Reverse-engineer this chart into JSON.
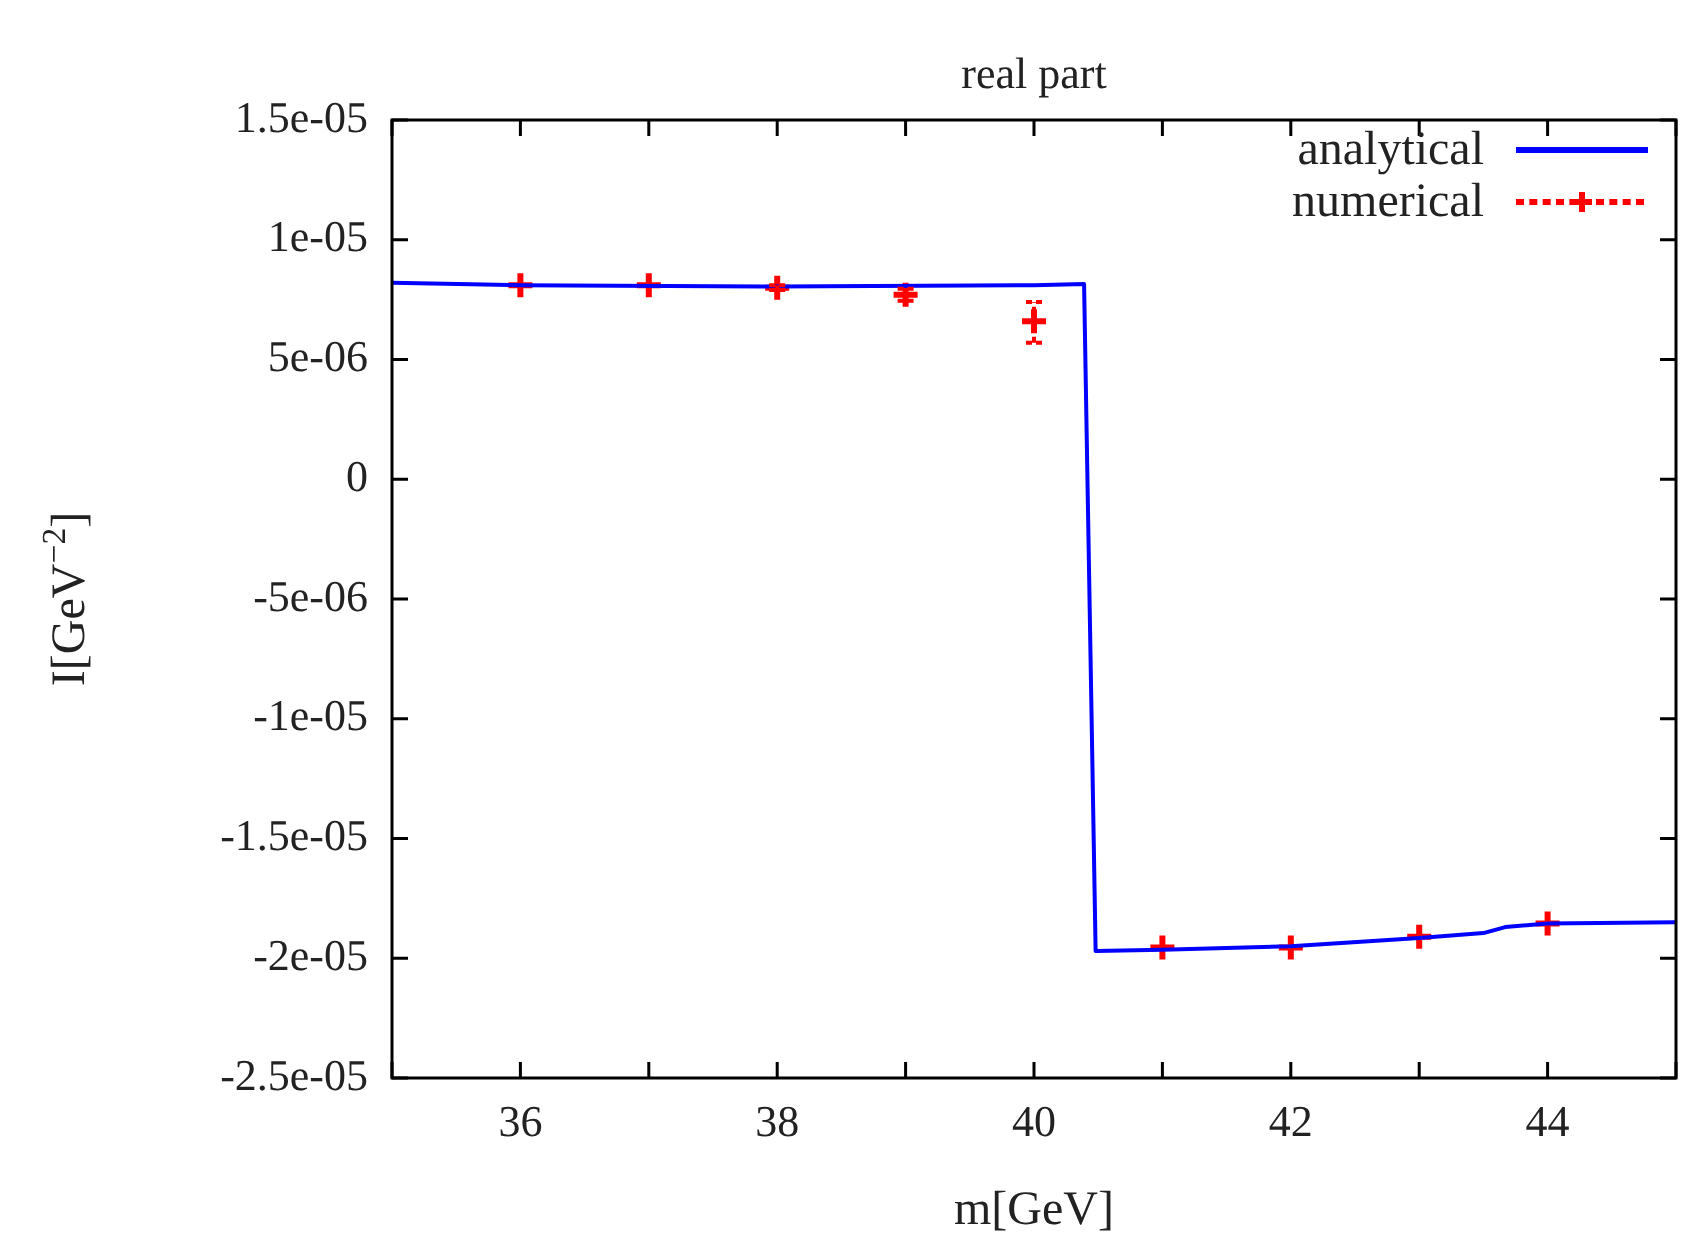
{
  "chart_data": {
    "type": "line",
    "title": "real part",
    "xlabel": "m[GeV]",
    "ylabel": "I[GeV$^{−2}$]",
    "xlim": [
      35,
      45
    ],
    "xticks": [
      {
        "value": 35,
        "label": null
      },
      36,
      {
        "value": 37,
        "label": null
      },
      38,
      {
        "value": 39,
        "label": null
      },
      40,
      {
        "value": 41,
        "label": null
      },
      42,
      {
        "value": 43,
        "label": null
      },
      44,
      {
        "value": 45,
        "label": null
      }
    ],
    "ylim": [
      -2.5e-05,
      1.5e-05
    ],
    "yticks": [
      {
        "value": -2.5e-05,
        "label": "-2.5e-05"
      },
      {
        "value": -2e-05,
        "label": "-2e-05"
      },
      {
        "value": -1.5e-05,
        "label": "-1.5e-05"
      },
      {
        "value": -1e-05,
        "label": "-1e-05"
      },
      {
        "value": -5e-06,
        "label": "-5e-06"
      },
      0,
      {
        "value": 5e-06,
        "label": "5e-06"
      },
      {
        "value": 1e-05,
        "label": "1e-05"
      },
      {
        "value": 1.5e-05,
        "label": "1.5e-05"
      }
    ],
    "grid": false,
    "legend": "top right",
    "series": [
      {
        "name": "analytical",
        "type": "line",
        "color": "#0000ff",
        "marker": "none",
        "line_style": "solid",
        "x": [
          35,
          36,
          38,
          40,
          40.39,
          40.48,
          41,
          42,
          43,
          43.5,
          43.67,
          44,
          45
        ],
        "values": [
          8.2e-06,
          8.1e-06,
          8.05e-06,
          8.1e-06,
          8.15e-06,
          -1.97e-05,
          -1.965e-05,
          -1.95e-05,
          -1.915e-05,
          -1.895e-05,
          -1.87e-05,
          -1.855e-05,
          -1.85e-05
        ]
      },
      {
        "name": "numerical",
        "type": "scatter",
        "color": "#ff0000",
        "marker": "cross",
        "line_style": "dashed",
        "x": [
          36,
          37,
          38,
          39,
          40,
          41,
          42,
          43,
          44
        ],
        "values": [
          8.1e-06,
          8.1e-06,
          8e-06,
          7.7e-06,
          6.6e-06,
          -1.955e-05,
          -1.955e-05,
          -1.91e-05,
          -1.855e-05
        ],
        "errors": [
          null,
          null,
          1e-07,
          2.5e-07,
          [
            5.7e-06,
            7.4e-06
          ],
          null,
          null,
          null,
          null
        ]
      }
    ]
  }
}
